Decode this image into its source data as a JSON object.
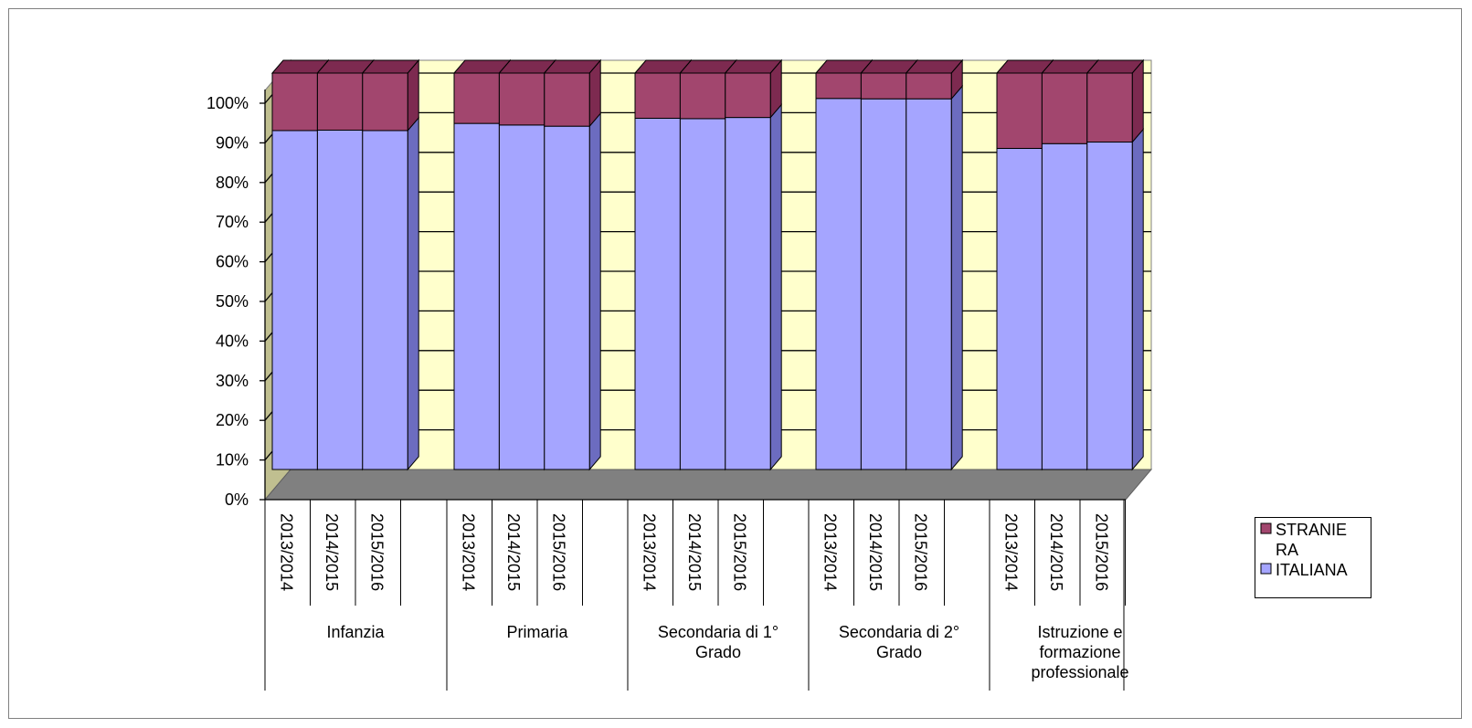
{
  "chart_data": {
    "type": "bar",
    "stacked": "percent",
    "three_d": true,
    "groups": [
      "Infanzia",
      "Primaria",
      "Secondaria di 1° Grado",
      "Secondaria di 2° Grado",
      "Istruzione e formazione professionale"
    ],
    "categories": [
      "2013/2014",
      "2014/2015",
      "2015/2016"
    ],
    "series": [
      {
        "name": "ITALIANA",
        "color": "#a5a5ff",
        "values": [
          [
            85.5,
            85.6,
            85.5
          ],
          [
            87.3,
            86.9,
            86.6
          ],
          [
            88.6,
            88.5,
            88.8
          ],
          [
            93.6,
            93.5,
            93.5
          ],
          [
            81.0,
            82.2,
            82.6
          ]
        ]
      },
      {
        "name": "STRANIERA",
        "color": "#a2466e",
        "values": [
          [
            14.5,
            14.4,
            14.5
          ],
          [
            12.7,
            13.1,
            13.4
          ],
          [
            11.4,
            11.5,
            11.2
          ],
          [
            6.4,
            6.5,
            6.5
          ],
          [
            19.0,
            17.8,
            17.4
          ]
        ]
      }
    ],
    "ylim": [
      0,
      100
    ],
    "yticks": [
      "0%",
      "10%",
      "20%",
      "30%",
      "40%",
      "50%",
      "60%",
      "70%",
      "80%",
      "90%",
      "100%"
    ],
    "grid": true,
    "legend": {
      "position": "right",
      "items": [
        {
          "label": "STRANIE RA",
          "color": "#a2466e"
        },
        {
          "label": "ITALIANA",
          "color": "#a5a5ff"
        }
      ]
    }
  },
  "group_label_lines": [
    [
      "Infanzia"
    ],
    [
      "Primaria"
    ],
    [
      "Secondaria di 1°",
      "Grado"
    ],
    [
      "Secondaria di 2°",
      "Grado"
    ],
    [
      "Istruzione e",
      "formazione",
      "professionale"
    ]
  ],
  "legend_label_lines": [
    [
      "STRANIE",
      "RA"
    ],
    [
      "ITALIANA"
    ]
  ],
  "colors": {
    "back_wall": "#ffffcc",
    "side_wall": "#c0bf90",
    "floor": "#808080",
    "italiana_front": "#a5a5ff",
    "italiana_side": "#6c6cc0",
    "straniera_front": "#a2466e",
    "straniera_top": "#7d2a50"
  }
}
